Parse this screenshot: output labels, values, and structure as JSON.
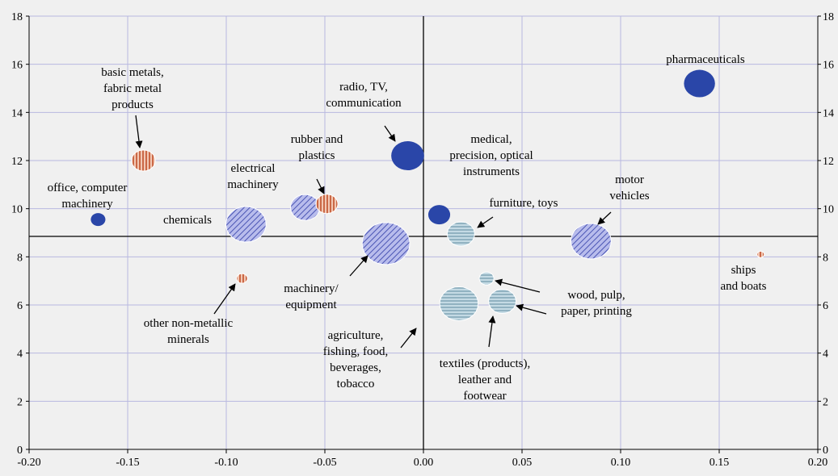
{
  "chart_data": {
    "type": "bubble",
    "xlim": [
      -0.2,
      0.2
    ],
    "ylim": [
      0,
      18
    ],
    "grid": true,
    "x_ticks": [
      "-0.20",
      "-0.15",
      "-0.10",
      "-0.05",
      "0.00",
      "0.05",
      "0.10",
      "0.15",
      "0.20"
    ],
    "y_ticks": [
      "0",
      "2",
      "4",
      "6",
      "8",
      "10",
      "12",
      "14",
      "16",
      "18"
    ],
    "reference_lines": {
      "x": 0.0,
      "y": 8.85
    },
    "colors": {
      "high_tech": "#2a46a8",
      "medium_high_tech": "#8b92d6",
      "medium_low_tech": "#d06840",
      "low_tech": "#a8c4d2",
      "grid": "#b8b8e0"
    },
    "points": [
      {
        "label": "pharmaceuticals",
        "x": 0.14,
        "y": 15.2,
        "size": 17,
        "group": "high_tech"
      },
      {
        "label": "radio, TV, communication",
        "x": -0.008,
        "y": 12.2,
        "size": 18,
        "group": "high_tech"
      },
      {
        "label": "medical, precision, optical instruments",
        "x": 0.008,
        "y": 9.75,
        "size": 12,
        "group": "high_tech"
      },
      {
        "label": "office, computer machinery",
        "x": -0.165,
        "y": 9.55,
        "size": 8,
        "group": "high_tech"
      },
      {
        "label": "electrical machinery",
        "x": -0.06,
        "y": 10.05,
        "size": 16,
        "group": "medium_high_tech"
      },
      {
        "label": "chemicals",
        "x": -0.09,
        "y": 9.35,
        "size": 22,
        "group": "medium_high_tech"
      },
      {
        "label": "machinery/ equipment",
        "x": -0.019,
        "y": 8.55,
        "size": 26,
        "group": "medium_high_tech"
      },
      {
        "label": "motor vehicles",
        "x": 0.085,
        "y": 8.65,
        "size": 22,
        "group": "medium_high_tech"
      },
      {
        "label": "basic metals, fabric metal products",
        "x": -0.142,
        "y": 12.0,
        "size": 13,
        "group": "medium_low_tech"
      },
      {
        "label": "rubber and plastics",
        "x": -0.049,
        "y": 10.2,
        "size": 12,
        "group": "medium_low_tech"
      },
      {
        "label": "other non-metallic minerals",
        "x": -0.092,
        "y": 7.1,
        "size": 6,
        "group": "medium_low_tech"
      },
      {
        "label": "ships and boats",
        "x": 0.171,
        "y": 8.1,
        "size": 4,
        "group": "medium_low_tech"
      },
      {
        "label": "furniture, toys",
        "x": 0.019,
        "y": 8.95,
        "size": 15,
        "group": "low_tech"
      },
      {
        "label": "wood, pulp, paper, printing",
        "x": 0.032,
        "y": 7.1,
        "size": 8,
        "group": "low_tech"
      },
      {
        "label": "textiles (products), leather and footwear",
        "x": 0.04,
        "y": 6.15,
        "size": 15,
        "group": "low_tech"
      },
      {
        "label": "agriculture, fishing, food, beverages, tobacco",
        "x": 0.018,
        "y": 6.05,
        "size": 21,
        "group": "low_tech"
      }
    ],
    "annotations": [
      {
        "id": "pharma",
        "lines": [
          "pharmaceuticals"
        ]
      },
      {
        "id": "radio",
        "lines": [
          "radio, TV,",
          "communication"
        ]
      },
      {
        "id": "medical",
        "lines": [
          "medical,",
          "precision, optical",
          "instruments"
        ]
      },
      {
        "id": "office",
        "lines": [
          "office, computer",
          "machinery"
        ]
      },
      {
        "id": "electrical",
        "lines": [
          "electrical",
          "machinery"
        ]
      },
      {
        "id": "chemicals",
        "lines": [
          "chemicals"
        ]
      },
      {
        "id": "machinery",
        "lines": [
          "machinery/",
          "equipment"
        ]
      },
      {
        "id": "motor",
        "lines": [
          "motor",
          "vehicles"
        ]
      },
      {
        "id": "basic",
        "lines": [
          "basic metals,",
          "fabric metal",
          "products"
        ]
      },
      {
        "id": "rubber",
        "lines": [
          "rubber and",
          "plastics"
        ]
      },
      {
        "id": "nonmetal",
        "lines": [
          "other non-metallic",
          "minerals"
        ]
      },
      {
        "id": "ships",
        "lines": [
          "ships",
          "and boats"
        ]
      },
      {
        "id": "furniture",
        "lines": [
          "furniture, toys"
        ]
      },
      {
        "id": "wood",
        "lines": [
          "wood, pulp,",
          "paper, printing"
        ]
      },
      {
        "id": "textiles",
        "lines": [
          "textiles (products),",
          "leather and",
          "footwear"
        ]
      },
      {
        "id": "agri",
        "lines": [
          "agriculture,",
          "fishing, food,",
          "beverages,",
          "tobacco"
        ]
      }
    ]
  }
}
